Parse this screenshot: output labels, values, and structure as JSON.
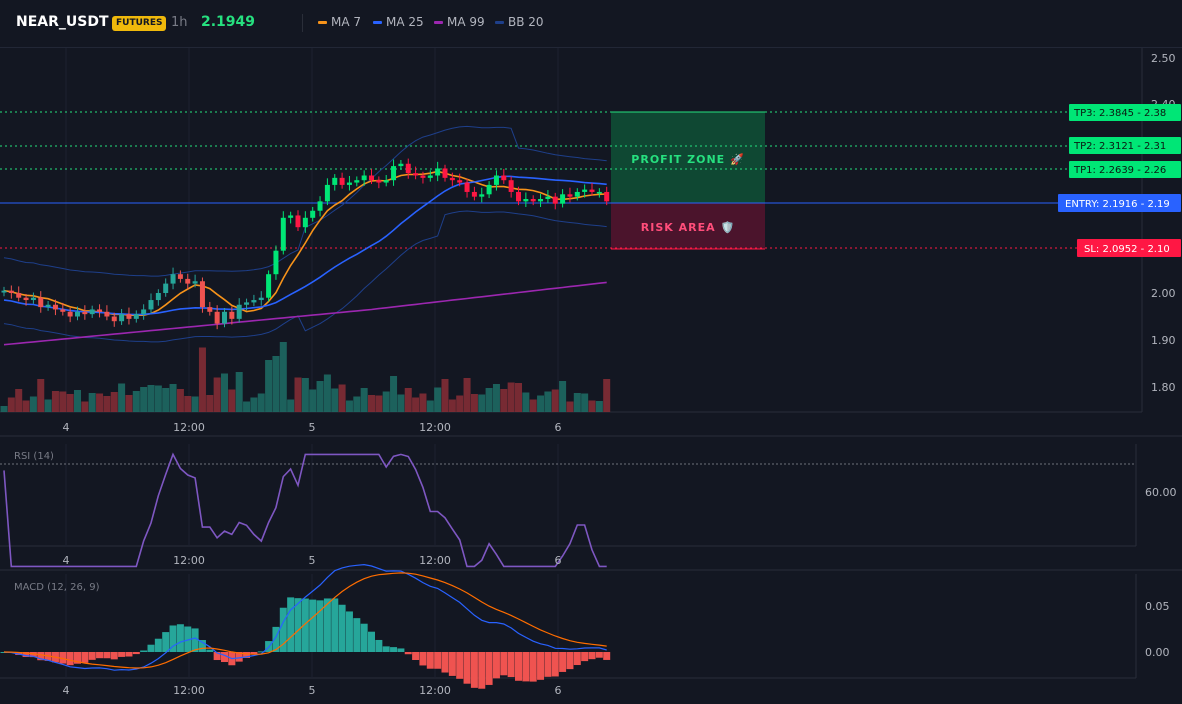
{
  "header": {
    "symbol": "NEAR_USDT",
    "badge": "FUTURES",
    "timeframe": "1h",
    "price": "2.1949",
    "legend": [
      {
        "label": "MA 7",
        "color": "#f7931a"
      },
      {
        "label": "MA 25",
        "color": "#2962ff"
      },
      {
        "label": "MA 99",
        "color": "#9c27b0"
      },
      {
        "label": "BB 20",
        "color": "#1e3f8a"
      }
    ]
  },
  "colors": {
    "up": "#26a69a",
    "down": "#ef5350",
    "up_bright": "#00e676",
    "down_bright": "#ff1744",
    "ma7": "#f7931a",
    "ma25": "#2962ff",
    "ma99": "#9c27b0",
    "bb": "#1e3f8a",
    "rsi": "#7e57c2",
    "macd": "#2962ff",
    "signal": "#ff6d00"
  },
  "price_axis": {
    "ticks": [
      "2.50",
      "2.40",
      "2.00",
      "1.90",
      "1.80"
    ]
  },
  "time_axis": {
    "labels": [
      "4",
      "12:00",
      "5",
      "12:00",
      "6"
    ]
  },
  "levels": [
    {
      "name": "tp3",
      "tag": "TP3: 2.3845",
      "value": "2.38",
      "kind": "tp"
    },
    {
      "name": "tp2",
      "tag": "TP2: 2.3121",
      "value": "2.31",
      "kind": "tp"
    },
    {
      "name": "tp1",
      "tag": "TP1: 2.2639",
      "value": "2.26",
      "kind": "tp"
    },
    {
      "name": "entry",
      "tag": "ENTRY: 2.1916",
      "value": "2.19",
      "kind": "entry"
    },
    {
      "name": "sl",
      "tag": "SL: 2.0952",
      "value": "2.10",
      "kind": "sl"
    }
  ],
  "zones": {
    "profit": "PROFIT ZONE 🚀",
    "risk": "RISK AREA 🛡️"
  },
  "rsi": {
    "title": "RSI (14)",
    "tick": "60.00"
  },
  "macd": {
    "title": "MACD (12, 26, 9)",
    "ticks": [
      "0.05",
      "0.00"
    ]
  },
  "chart_data": {
    "type": "candlestick",
    "closes": [
      2.005,
      2.0,
      1.99,
      1.985,
      1.99,
      1.97,
      1.975,
      1.965,
      1.96,
      1.95,
      1.96,
      1.955,
      1.965,
      1.96,
      1.95,
      1.94,
      1.955,
      1.945,
      1.955,
      1.965,
      1.985,
      2.0,
      2.02,
      2.04,
      2.03,
      2.02,
      2.025,
      1.97,
      1.96,
      1.935,
      1.96,
      1.945,
      1.975,
      1.98,
      1.985,
      1.99,
      2.04,
      2.09,
      2.16,
      2.165,
      2.14,
      2.16,
      2.175,
      2.195,
      2.23,
      2.245,
      2.23,
      2.235,
      2.24,
      2.25,
      2.24,
      2.235,
      2.24,
      2.27,
      2.275,
      2.255,
      2.25,
      2.245,
      2.25,
      2.265,
      2.245,
      2.24,
      2.235,
      2.215,
      2.205,
      2.21,
      2.23,
      2.25,
      2.24,
      2.215,
      2.195,
      2.2,
      2.195,
      2.2,
      2.205,
      2.19,
      2.21,
      2.205,
      2.215,
      2.22,
      2.215,
      2.215,
      2.195
    ],
    "ma7_last": 2.195,
    "ma25_last": 2.22,
    "ma99_last": 2.017,
    "volume_axis_note": "",
    "rsi_last": 53,
    "macd_last": 0.015,
    "signal_last": 0.02
  }
}
